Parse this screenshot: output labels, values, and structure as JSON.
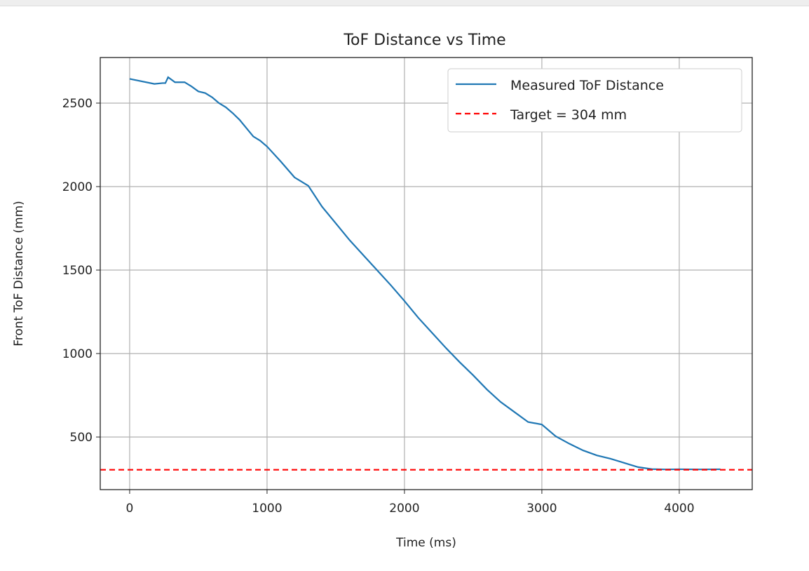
{
  "chart_data": {
    "type": "line",
    "title": "ToF Distance vs Time",
    "xlabel": "Time (ms)",
    "ylabel": "Front ToF Distance (mm)",
    "xlim": [
      -214,
      4531
    ],
    "ylim": [
      185,
      2773
    ],
    "xticks": [
      0,
      1000,
      2000,
      3000,
      4000
    ],
    "yticks": [
      500,
      1000,
      1500,
      2000,
      2500
    ],
    "grid": true,
    "legend_position": "top-right",
    "series": [
      {
        "name": "Measured ToF Distance",
        "color": "#1f77b4",
        "style": "solid",
        "x": [
          0,
          180,
          240,
          260,
          280,
          330,
          400,
          450,
          500,
          550,
          600,
          650,
          700,
          750,
          800,
          850,
          900,
          950,
          1000,
          1100,
          1200,
          1300,
          1400,
          1500,
          1600,
          1700,
          1800,
          1900,
          2000,
          2100,
          2200,
          2300,
          2400,
          2500,
          2600,
          2700,
          2800,
          2900,
          3000,
          3100,
          3200,
          3300,
          3400,
          3500,
          3600,
          3700,
          3800,
          3900,
          4000,
          4150,
          4300
        ],
        "y": [
          2645,
          2615,
          2620,
          2620,
          2655,
          2625,
          2625,
          2600,
          2570,
          2560,
          2535,
          2500,
          2475,
          2440,
          2400,
          2350,
          2300,
          2275,
          2240,
          2150,
          2055,
          2005,
          1880,
          1780,
          1680,
          1590,
          1500,
          1410,
          1315,
          1215,
          1125,
          1035,
          950,
          870,
          785,
          710,
          650,
          590,
          575,
          505,
          460,
          420,
          390,
          370,
          345,
          320,
          308,
          306,
          307,
          306,
          307
        ]
      },
      {
        "name": "Target = 304 mm",
        "color": "#ff0000",
        "style": "dashed",
        "hline": 304
      }
    ]
  }
}
